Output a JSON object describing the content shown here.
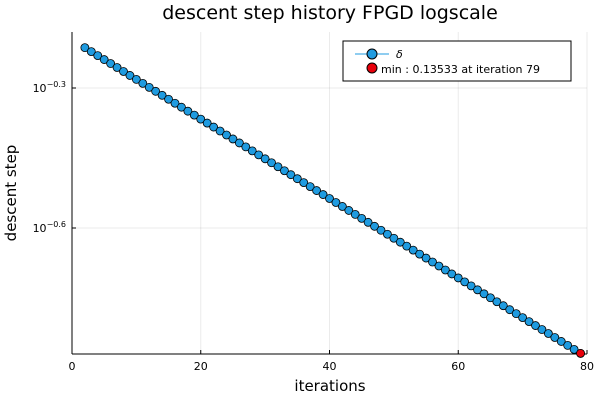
{
  "chart_data": {
    "type": "scatter",
    "title": "descent step history FPGD logscale",
    "xlabel": "iterations",
    "ylabel": "descent step",
    "yscale": "log10",
    "xlim": [
      0,
      80
    ],
    "ylim_log10": [
      -0.87,
      -0.18
    ],
    "xticks": [
      0,
      20,
      40,
      60,
      80
    ],
    "xtick_labels": [
      "0",
      "20",
      "40",
      "60",
      "80"
    ],
    "yticks_log10": [
      -0.3,
      -0.6
    ],
    "ytick_labels": [
      {
        "base": "10",
        "exp": "−0.3"
      },
      {
        "base": "10",
        "exp": "−0.6"
      }
    ],
    "grid": true,
    "legend_position": "top-right",
    "series": [
      {
        "name": "δ",
        "color": "#1f9be0",
        "marker": "circle",
        "line": true,
        "x_start": 2,
        "x_end": 79,
        "y_start": 0.6116,
        "y_end": 0.13533
      }
    ],
    "highlight": {
      "label": "min : 0.13533 at iteration 79",
      "x": 79,
      "y": 0.13533,
      "color": "#e8000b"
    }
  }
}
